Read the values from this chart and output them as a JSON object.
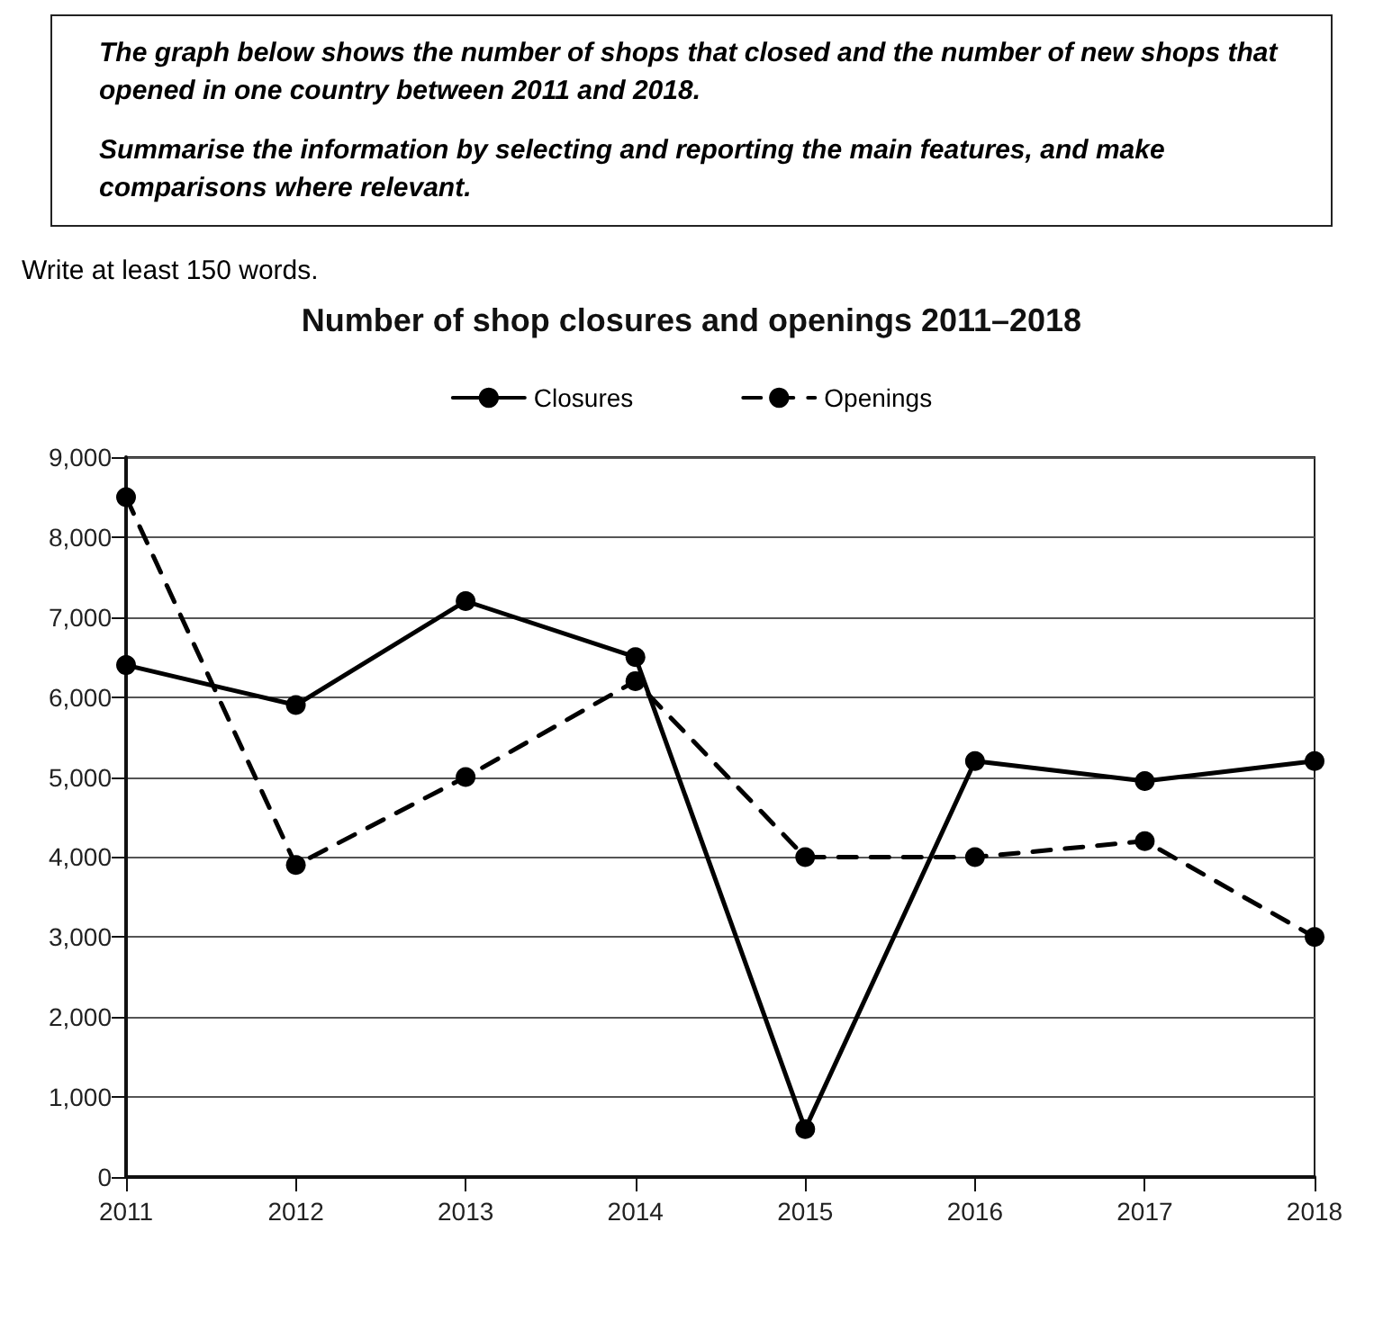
{
  "chart_data": {
    "type": "line",
    "title": "Number of shop closures and openings 2011–2018",
    "annotations": [
      "The graph below shows the number of shops that closed and the number of new shops that opened in one country between 2011 and 2018.",
      "Summarise the information by selecting and reporting the main features, and make comparisons where relevant.",
      "Write at least 150 words."
    ],
    "categories": [
      "2011",
      "2012",
      "2013",
      "2014",
      "2015",
      "2016",
      "2017",
      "2018"
    ],
    "series": [
      {
        "name": "Closures",
        "color": "#000000",
        "line_style": "solid",
        "values": [
          6400,
          5900,
          7200,
          6500,
          600,
          5200,
          4950,
          5200
        ]
      },
      {
        "name": "Openings",
        "color": "#000000",
        "line_style": "dashed",
        "values": [
          8500,
          3900,
          5000,
          6200,
          4000,
          4000,
          4200,
          3000
        ]
      }
    ],
    "ylim": [
      0,
      9000
    ],
    "yticks": [
      0,
      {
        "value": 1000,
        "label": "1,000"
      },
      {
        "value": 2000,
        "label": "2,000"
      },
      {
        "value": 3000,
        "label": "3,000"
      },
      {
        "value": 4000,
        "label": "4,000"
      },
      {
        "value": 5000,
        "label": "5,000"
      },
      {
        "value": 6000,
        "label": "6,000"
      },
      {
        "value": 7000,
        "label": "7,000"
      },
      {
        "value": 8000,
        "label": "8,000"
      },
      {
        "value": 9000,
        "label": "9,000"
      }
    ],
    "grid": "y",
    "legend": "top",
    "marker": "circle"
  }
}
